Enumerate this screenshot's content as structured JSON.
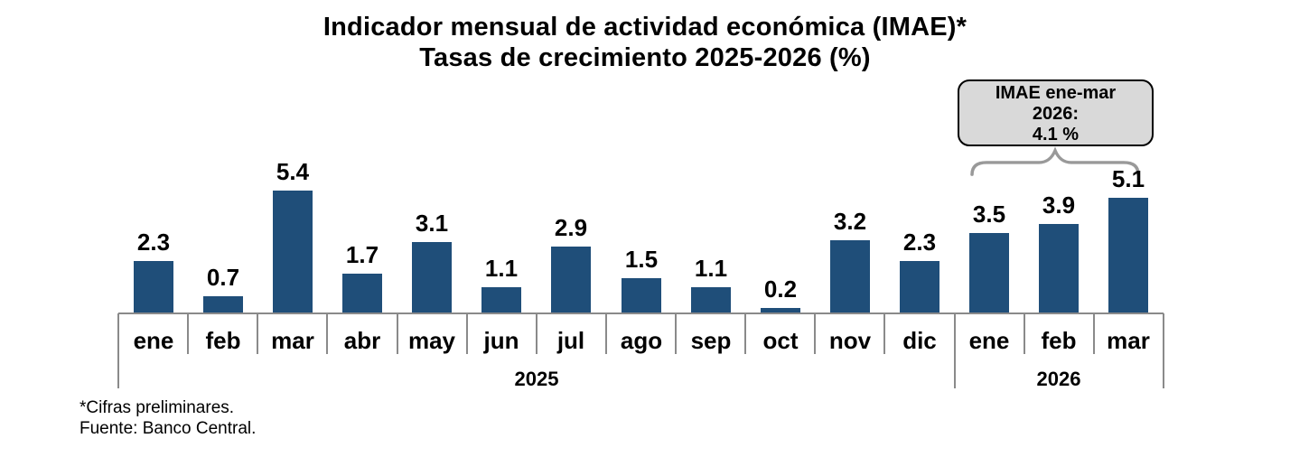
{
  "title": {
    "line1": "Indicador mensual de actividad económica (IMAE)*",
    "line2": "Tasas de crecimiento 2025-2026 (%)"
  },
  "annotation_box": {
    "line1": "IMAE ene-mar",
    "line2": "2026:",
    "line3": "4.1 %"
  },
  "footnotes": {
    "line1": "*Cifras preliminares.",
    "line2": "Fuente: Banco Central."
  },
  "chart_data": {
    "type": "bar",
    "title": "Indicador mensual de actividad económica (IMAE)*",
    "subtitle": "Tasas de crecimiento 2025-2026 (%)",
    "categories": [
      "ene",
      "feb",
      "mar",
      "abr",
      "may",
      "jun",
      "jul",
      "ago",
      "sep",
      "oct",
      "nov",
      "dic",
      "ene",
      "feb",
      "mar"
    ],
    "values": [
      2.3,
      0.7,
      5.4,
      1.7,
      3.1,
      1.1,
      2.9,
      1.5,
      1.1,
      0.2,
      3.2,
      2.3,
      3.5,
      3.9,
      5.1
    ],
    "year_groups": [
      {
        "label": "2025",
        "start": 0,
        "count": 12
      },
      {
        "label": "2026",
        "start": 12,
        "count": 3
      }
    ],
    "annotation": "IMAE ene-mar 2026: 4.1 %",
    "data_labels": true,
    "decimals": 1,
    "grid": false,
    "legend": false,
    "y_axis_visible": false,
    "ylim": [
      0,
      5.8
    ],
    "colors": {
      "bar": "#1f4e79",
      "axis": "#8a8a8a",
      "brace": "#999999",
      "annotation_fill": "#d9d9d9",
      "annotation_border": "#000000",
      "text": "#000000"
    }
  }
}
